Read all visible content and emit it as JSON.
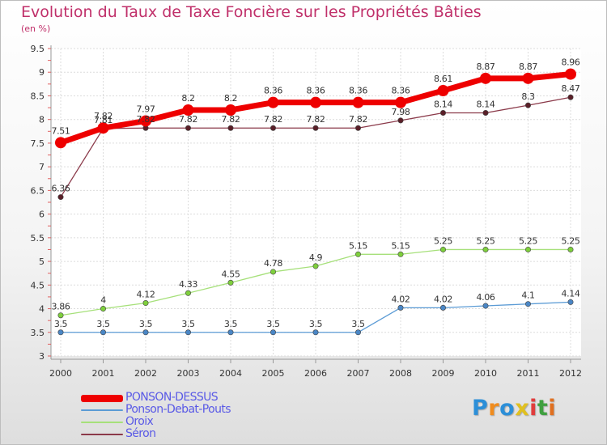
{
  "title": "Evolution du Taux de Taxe Foncière sur les Propriétés Bâties",
  "subtitle": "(en %)",
  "logo": {
    "text": "Proxiti",
    "colors": [
      "#2c8fd8",
      "#f08c1e",
      "#2c8fd8",
      "#e0c020",
      "#e03c3c",
      "#40a040",
      "#e07020"
    ]
  },
  "chart_data": {
    "type": "line",
    "title": "Evolution du Taux de Taxe Foncière sur les Propriétés Bâties",
    "ylabel": "(en %)",
    "xlabel": "",
    "x": [
      "2000",
      "2001",
      "2002",
      "2003",
      "2004",
      "2005",
      "2006",
      "2007",
      "2008",
      "2009",
      "2010",
      "2011",
      "2012"
    ],
    "ylim": [
      3,
      9.5
    ],
    "yticks": [
      "3",
      "3.5",
      "4",
      "4.5",
      "5",
      "5.5",
      "6",
      "6.5",
      "7",
      "7.5",
      "8",
      "8.5",
      "9",
      "9.5"
    ],
    "grid": true,
    "legend_position": "bottom-left",
    "series": [
      {
        "name": "PONSON-DESSUS",
        "color": "#ee0000",
        "values": [
          7.51,
          7.82,
          7.97,
          8.2,
          8.2,
          8.36,
          8.36,
          8.36,
          8.36,
          8.61,
          8.87,
          8.87,
          8.96
        ],
        "labels": [
          "7.51",
          "7.82",
          "7.97",
          "8.2",
          "8.2",
          "8.36",
          "8.36",
          "8.36",
          "8.36",
          "8.61",
          "8.87",
          "8.87",
          "8.96"
        ]
      },
      {
        "name": "Ponson-Debat-Pouts",
        "color": "#5b9bd5",
        "values": [
          3.5,
          3.5,
          3.5,
          3.5,
          3.5,
          3.5,
          3.5,
          3.5,
          4.02,
          4.02,
          4.06,
          4.1,
          4.14
        ],
        "labels": [
          "3.5",
          "3.5",
          "3.5",
          "3.5",
          "3.5",
          "3.5",
          "3.5",
          "3.5",
          "4.02",
          "4.02",
          "4.06",
          "4.1",
          "4.14"
        ]
      },
      {
        "name": "Oroix",
        "color": "#a6e07a",
        "values": [
          3.86,
          4,
          4.12,
          4.33,
          4.55,
          4.78,
          4.9,
          5.15,
          5.15,
          5.25,
          5.25,
          5.25,
          5.25
        ],
        "labels": [
          "3.86",
          "4",
          "4.12",
          "4.33",
          "4.55",
          "4.78",
          "4.9",
          "5.15",
          "5.15",
          "5.25",
          "5.25",
          "5.25",
          "5.25"
        ]
      },
      {
        "name": "Séron",
        "color": "#8b3a4a",
        "values": [
          6.36,
          7.81,
          7.82,
          7.82,
          7.82,
          7.82,
          7.82,
          7.82,
          7.98,
          8.14,
          8.14,
          8.3,
          8.47
        ],
        "labels": [
          "6.36",
          "7.81",
          "7.82",
          "7.82",
          "7.82",
          "7.82",
          "7.82",
          "7.82",
          "7.98",
          "8.14",
          "8.14",
          "8.3",
          "8.47"
        ]
      }
    ]
  }
}
